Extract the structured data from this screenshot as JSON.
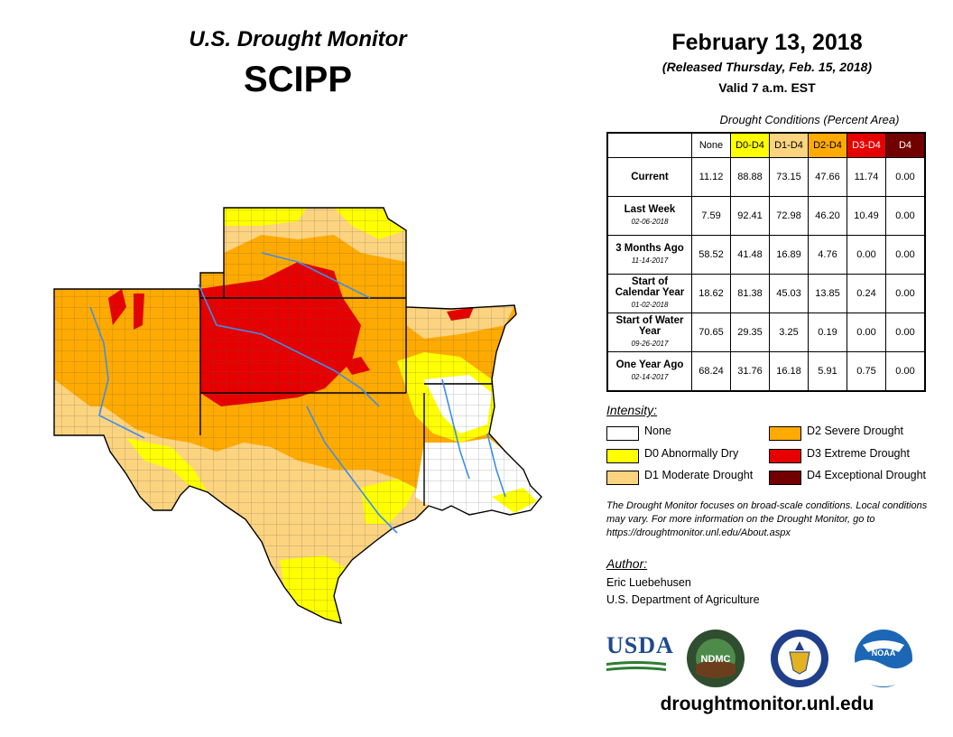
{
  "header": {
    "title": "U.S. Drought Monitor",
    "region": "SCIPP",
    "date": "February 13, 2018",
    "released": "(Released Thursday, Feb. 15, 2018)",
    "valid": "Valid 7 a.m. EST"
  },
  "conditions": {
    "caption": "Drought Conditions (Percent Area)",
    "columns": [
      "None",
      "D0-D4",
      "D1-D4",
      "D2-D4",
      "D3-D4",
      "D4"
    ],
    "column_colors": [
      "#ffffff",
      "#ffff00",
      "#fcd37f",
      "#ffaa00",
      "#e60000",
      "#730000"
    ],
    "rows": [
      {
        "label": "Current",
        "date": "",
        "values": [
          "11.12",
          "88.88",
          "73.15",
          "47.66",
          "11.74",
          "0.00"
        ]
      },
      {
        "label": "Last Week",
        "date": "02-06-2018",
        "values": [
          "7.59",
          "92.41",
          "72.98",
          "46.20",
          "10.49",
          "0.00"
        ]
      },
      {
        "label": "3 Months Ago",
        "date": "11-14-2017",
        "values": [
          "58.52",
          "41.48",
          "16.89",
          "4.76",
          "0.00",
          "0.00"
        ]
      },
      {
        "label": "Start of Calendar Year",
        "date": "01-02-2018",
        "values": [
          "18.62",
          "81.38",
          "45.03",
          "13.85",
          "0.24",
          "0.00"
        ]
      },
      {
        "label": "Start of Water Year",
        "date": "09-26-2017",
        "values": [
          "70.65",
          "29.35",
          "3.25",
          "0.19",
          "0.00",
          "0.00"
        ]
      },
      {
        "label": "One Year Ago",
        "date": "02-14-2017",
        "values": [
          "68.24",
          "31.76",
          "16.18",
          "5.91",
          "0.75",
          "0.00"
        ]
      }
    ]
  },
  "legend": {
    "heading": "Intensity:",
    "items": [
      {
        "label": "None",
        "color": "#ffffff"
      },
      {
        "label": "D0 Abnormally Dry",
        "color": "#ffff00"
      },
      {
        "label": "D1 Moderate Drought",
        "color": "#fcd37f"
      },
      {
        "label": "D2 Severe Drought",
        "color": "#ffaa00"
      },
      {
        "label": "D3 Extreme Drought",
        "color": "#e60000"
      },
      {
        "label": "D4 Exceptional Drought",
        "color": "#730000"
      }
    ]
  },
  "note": "The Drought Monitor focuses on broad-scale conditions. Local conditions may vary. For more information on the Drought Monitor, go to https://droughtmonitor.unl.edu/About.aspx",
  "author": {
    "heading": "Author:",
    "name": "Eric Luebehusen",
    "org": "U.S. Department of Agriculture"
  },
  "logos": {
    "usda": "USDA",
    "ndmc": "NDMC",
    "noaa": "NOAA"
  },
  "url": "droughtmonitor.unl.edu"
}
